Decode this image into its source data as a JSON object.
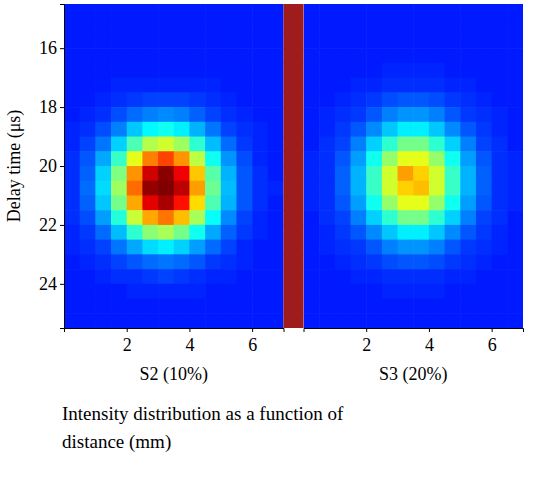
{
  "chart_data": {
    "type": "heatmap",
    "xlabel": "Intensity distribution as a function of distance (mm)",
    "ylabel": "Delay time (μs)",
    "ylim": [
      25.5,
      14.5
    ],
    "yticks": [
      16,
      18,
      20,
      22,
      24
    ],
    "y": [
      14.75,
      15.25,
      15.75,
      16.25,
      16.75,
      17.25,
      17.75,
      18.25,
      18.75,
      19.25,
      19.75,
      20.25,
      20.75,
      21.25,
      21.75,
      22.25,
      22.75,
      23.25,
      23.75,
      24.25,
      24.75,
      25.25
    ],
    "zlim": [
      0,
      10
    ],
    "panels": [
      {
        "title": "S2 (10%)",
        "xlim": [
          0,
          7
        ],
        "xticks": [
          2,
          4,
          6
        ],
        "x": [
          0.25,
          0.75,
          1.25,
          1.75,
          2.25,
          2.75,
          3.25,
          3.75,
          4.25,
          4.75,
          5.25,
          5.75,
          6.25,
          6.75
        ],
        "z": [
          [
            1.5,
            1.5,
            1.5,
            1.5,
            1.5,
            1.5,
            1.5,
            1.5,
            1.5,
            1.5,
            1.5,
            1.5,
            1.5,
            1.5
          ],
          [
            1.5,
            1.5,
            1.5,
            1.5,
            1.5,
            1.5,
            1.5,
            1.5,
            1.5,
            1.5,
            1.5,
            1.5,
            1.5,
            1.5
          ],
          [
            1.5,
            1.5,
            1.5,
            1.5,
            1.5,
            1.5,
            1.5,
            1.5,
            1.5,
            1.5,
            1.5,
            1.5,
            1.5,
            1.5
          ],
          [
            1.5,
            1.5,
            1.5,
            1.5,
            1.5,
            1.5,
            1.5,
            1.5,
            1.5,
            1.5,
            1.5,
            1.5,
            1.5,
            1.5
          ],
          [
            1.5,
            1.5,
            1.5,
            1.5,
            1.5,
            1.5,
            1.5,
            1.5,
            1.5,
            1.5,
            1.5,
            1.5,
            1.5,
            1.5
          ],
          [
            1.5,
            1.5,
            1.5,
            1.6,
            1.6,
            1.6,
            1.6,
            1.6,
            1.6,
            1.6,
            1.5,
            1.5,
            1.5,
            1.5
          ],
          [
            1.5,
            1.5,
            1.6,
            1.7,
            1.8,
            1.9,
            1.9,
            1.9,
            1.8,
            1.7,
            1.6,
            1.5,
            1.5,
            1.5
          ],
          [
            1.5,
            1.6,
            1.7,
            2.0,
            2.3,
            2.5,
            2.6,
            2.5,
            2.2,
            1.9,
            1.7,
            1.6,
            1.5,
            1.5
          ],
          [
            1.6,
            1.7,
            2.0,
            2.5,
            3.2,
            3.7,
            3.9,
            3.6,
            3.0,
            2.4,
            1.9,
            1.7,
            1.6,
            1.5
          ],
          [
            1.6,
            1.9,
            2.4,
            3.3,
            4.5,
            5.5,
            5.8,
            5.3,
            4.2,
            3.1,
            2.3,
            1.8,
            1.6,
            1.5
          ],
          [
            1.7,
            2.1,
            2.9,
            4.3,
            6.0,
            7.5,
            8.1,
            7.3,
            5.6,
            3.9,
            2.7,
            2.0,
            1.6,
            1.5
          ],
          [
            1.7,
            2.2,
            3.3,
            5.0,
            7.3,
            9.2,
            9.9,
            8.9,
            6.8,
            4.6,
            3.0,
            2.1,
            1.7,
            1.5
          ],
          [
            1.7,
            2.3,
            3.4,
            5.3,
            7.7,
            9.8,
            10,
            9.4,
            7.2,
            4.8,
            3.1,
            2.1,
            1.7,
            1.6
          ],
          [
            1.7,
            2.2,
            3.2,
            4.9,
            7.1,
            9.0,
            9.6,
            8.6,
            6.6,
            4.5,
            3.0,
            2.1,
            1.7,
            1.5
          ],
          [
            1.7,
            2.0,
            2.8,
            4.1,
            5.7,
            7.1,
            7.6,
            6.9,
            5.4,
            3.8,
            2.6,
            1.9,
            1.6,
            1.5
          ],
          [
            1.6,
            1.8,
            2.3,
            3.1,
            4.2,
            5.1,
            5.4,
            4.9,
            3.9,
            2.9,
            2.2,
            1.8,
            1.6,
            1.5
          ],
          [
            1.6,
            1.7,
            1.9,
            2.4,
            2.9,
            3.4,
            3.6,
            3.3,
            2.8,
            2.3,
            1.9,
            1.6,
            1.5,
            1.5
          ],
          [
            1.5,
            1.6,
            1.7,
            1.9,
            2.1,
            2.3,
            2.4,
            2.3,
            2.1,
            1.8,
            1.7,
            1.6,
            1.5,
            1.5
          ],
          [
            1.5,
            1.5,
            1.6,
            1.7,
            1.7,
            1.8,
            1.9,
            1.8,
            1.7,
            1.6,
            1.6,
            1.5,
            1.5,
            1.5
          ],
          [
            1.5,
            1.5,
            1.5,
            1.5,
            1.6,
            1.6,
            1.6,
            1.6,
            1.6,
            1.5,
            1.5,
            1.5,
            1.5,
            1.5
          ],
          [
            1.5,
            1.5,
            1.5,
            1.5,
            1.5,
            1.5,
            1.5,
            1.5,
            1.5,
            1.5,
            1.5,
            1.5,
            1.5,
            1.5
          ],
          [
            1.5,
            1.5,
            1.5,
            1.5,
            1.5,
            1.5,
            1.5,
            1.5,
            1.5,
            1.5,
            1.5,
            1.5,
            1.5,
            1.5
          ]
        ]
      },
      {
        "title": "S3 (20%)",
        "xlim": [
          0,
          7
        ],
        "xticks": [
          2,
          4,
          6
        ],
        "x": [
          0.25,
          0.75,
          1.25,
          1.75,
          2.25,
          2.75,
          3.25,
          3.75,
          4.25,
          4.75,
          5.25,
          5.75,
          6.25,
          6.75
        ],
        "z": [
          [
            1.5,
            1.5,
            1.5,
            1.5,
            1.5,
            1.5,
            1.5,
            1.5,
            1.5,
            1.5,
            1.5,
            1.5,
            1.5,
            1.5
          ],
          [
            1.5,
            1.5,
            1.5,
            1.5,
            1.5,
            1.5,
            1.5,
            1.5,
            1.5,
            1.5,
            1.5,
            1.5,
            1.5,
            1.5
          ],
          [
            1.5,
            1.5,
            1.5,
            1.5,
            1.5,
            1.5,
            1.5,
            1.5,
            1.5,
            1.5,
            1.5,
            1.5,
            1.5,
            1.5
          ],
          [
            1.5,
            1.5,
            1.5,
            1.5,
            1.5,
            1.5,
            1.5,
            1.5,
            1.5,
            1.5,
            1.5,
            1.5,
            1.5,
            1.5
          ],
          [
            1.5,
            1.5,
            1.5,
            1.5,
            1.5,
            1.6,
            1.6,
            1.6,
            1.6,
            1.5,
            1.5,
            1.5,
            1.5,
            1.5
          ],
          [
            1.5,
            1.5,
            1.5,
            1.6,
            1.6,
            1.7,
            1.7,
            1.7,
            1.7,
            1.6,
            1.6,
            1.5,
            1.5,
            1.5
          ],
          [
            1.5,
            1.5,
            1.6,
            1.7,
            1.8,
            2.0,
            2.1,
            2.1,
            2.0,
            1.8,
            1.7,
            1.6,
            1.5,
            1.5
          ],
          [
            1.5,
            1.6,
            1.7,
            1.8,
            2.1,
            2.5,
            2.7,
            2.7,
            2.5,
            2.1,
            1.8,
            1.7,
            1.6,
            1.5
          ],
          [
            1.5,
            1.6,
            1.8,
            2.1,
            2.6,
            3.2,
            3.6,
            3.6,
            3.2,
            2.6,
            2.1,
            1.8,
            1.6,
            1.5
          ],
          [
            1.5,
            1.7,
            1.9,
            2.5,
            3.3,
            4.2,
            4.9,
            4.9,
            4.2,
            3.3,
            2.5,
            1.9,
            1.7,
            1.5
          ],
          [
            1.6,
            1.7,
            2.1,
            2.8,
            3.9,
            5.2,
            6.0,
            6.0,
            5.2,
            3.9,
            2.8,
            2.1,
            1.7,
            1.6
          ],
          [
            1.6,
            1.7,
            2.2,
            3.0,
            4.3,
            5.8,
            7.2,
            6.7,
            5.8,
            4.3,
            3.0,
            2.2,
            1.7,
            1.6
          ],
          [
            1.6,
            1.7,
            2.2,
            3.0,
            4.3,
            5.8,
            6.7,
            6.9,
            5.8,
            4.3,
            3.0,
            2.2,
            1.7,
            1.6
          ],
          [
            1.6,
            1.7,
            2.1,
            2.8,
            3.9,
            5.2,
            6.0,
            6.0,
            5.2,
            3.9,
            2.8,
            2.1,
            1.7,
            1.6
          ],
          [
            1.5,
            1.7,
            1.9,
            2.5,
            3.3,
            4.2,
            4.9,
            4.9,
            4.2,
            3.3,
            2.5,
            1.9,
            1.7,
            1.5
          ],
          [
            1.5,
            1.6,
            1.8,
            2.1,
            2.6,
            3.2,
            3.6,
            3.6,
            3.2,
            2.6,
            2.1,
            1.8,
            1.6,
            1.5
          ],
          [
            1.5,
            1.6,
            1.7,
            1.8,
            2.1,
            2.5,
            2.7,
            2.7,
            2.5,
            2.1,
            1.8,
            1.7,
            1.6,
            1.5
          ],
          [
            1.5,
            1.5,
            1.6,
            1.7,
            1.8,
            2.0,
            2.1,
            2.1,
            2.0,
            1.8,
            1.7,
            1.6,
            1.5,
            1.5
          ],
          [
            1.5,
            1.5,
            1.5,
            1.6,
            1.6,
            1.7,
            1.7,
            1.7,
            1.7,
            1.6,
            1.6,
            1.5,
            1.5,
            1.5
          ],
          [
            1.5,
            1.5,
            1.5,
            1.5,
            1.5,
            1.6,
            1.6,
            1.6,
            1.6,
            1.5,
            1.5,
            1.5,
            1.5,
            1.5
          ],
          [
            1.5,
            1.5,
            1.5,
            1.5,
            1.5,
            1.5,
            1.5,
            1.5,
            1.5,
            1.5,
            1.5,
            1.5,
            1.5,
            1.5
          ],
          [
            1.5,
            1.5,
            1.5,
            1.5,
            1.5,
            1.5,
            1.5,
            1.5,
            1.5,
            1.5,
            1.5,
            1.5,
            1.5,
            1.5
          ]
        ]
      }
    ]
  }
}
